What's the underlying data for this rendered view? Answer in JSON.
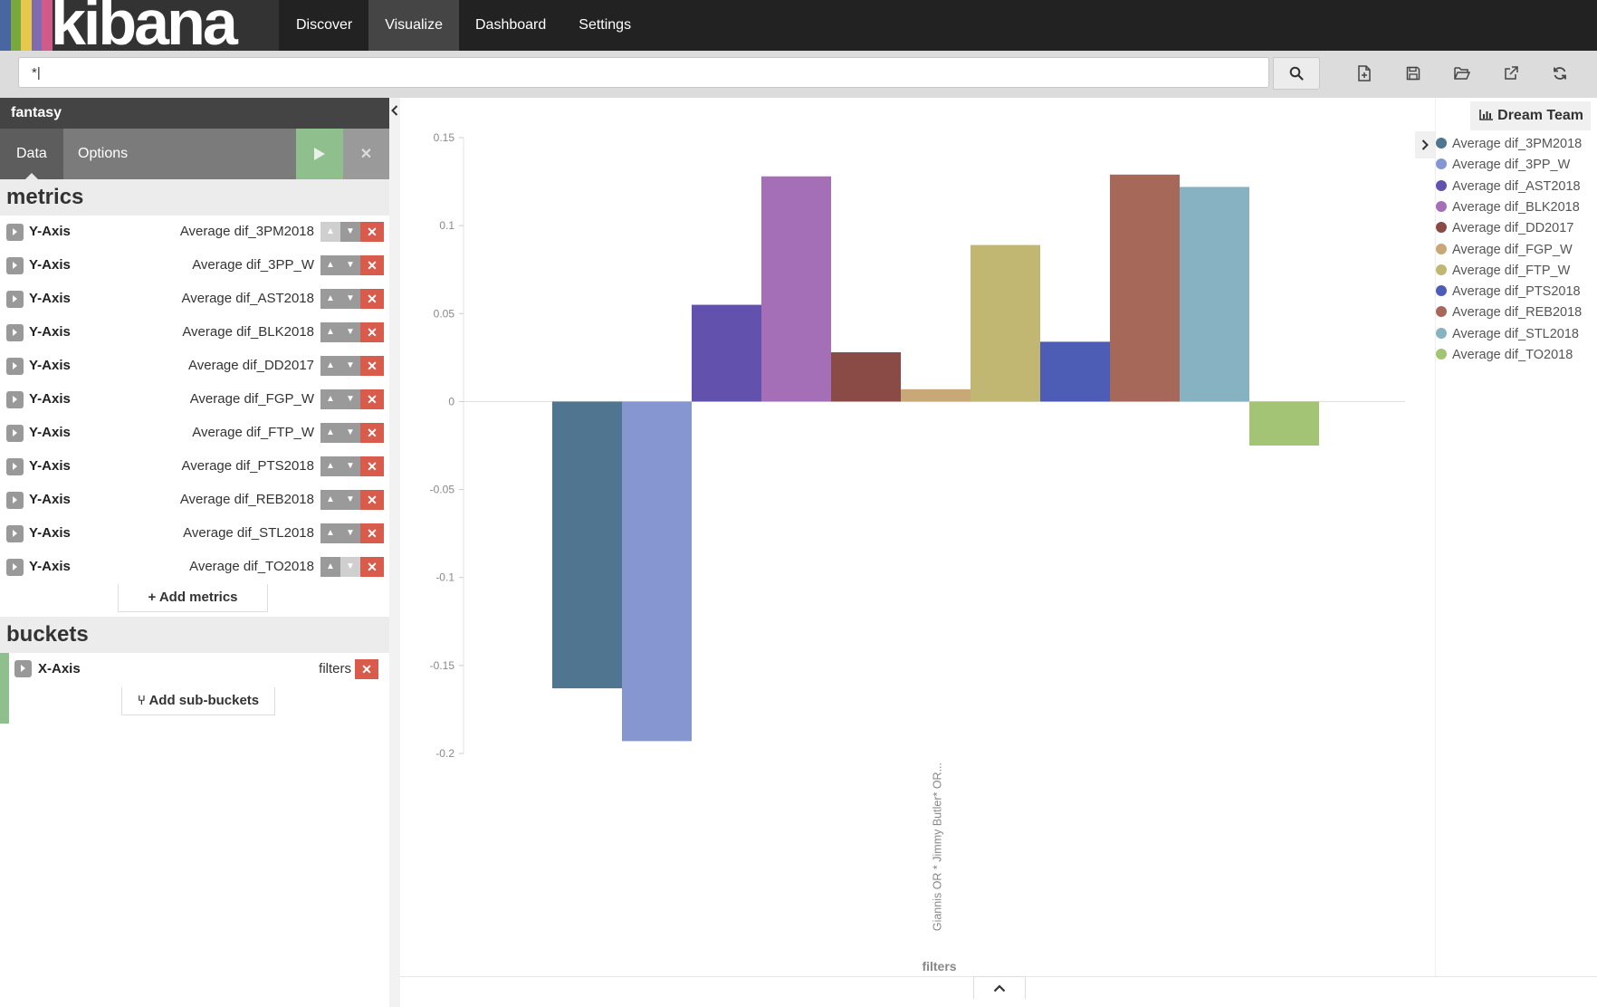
{
  "app": {
    "logo_text": "kibana",
    "logo_colors": [
      "#4a66a0",
      "#78a93f",
      "#e6c84a",
      "#7e6bb0",
      "#d05b8b"
    ]
  },
  "nav": {
    "items": [
      {
        "label": "Discover"
      },
      {
        "label": "Visualize",
        "active": true
      },
      {
        "label": "Dashboard"
      },
      {
        "label": "Settings"
      }
    ]
  },
  "search": {
    "value": "*|",
    "icon": "search-icon"
  },
  "toolbar": {
    "icons": [
      "new-visualization-icon",
      "save-icon",
      "open-icon",
      "share-icon",
      "refresh-icon"
    ]
  },
  "sidebar": {
    "index_pattern": "fantasy",
    "tabs": [
      {
        "label": "Data"
      },
      {
        "label": "Options"
      }
    ],
    "metrics_title": "metrics",
    "metrics": [
      {
        "label": "Y-Axis",
        "desc": "Average dif_3PM2018"
      },
      {
        "label": "Y-Axis",
        "desc": "Average dif_3PP_W"
      },
      {
        "label": "Y-Axis",
        "desc": "Average dif_AST2018"
      },
      {
        "label": "Y-Axis",
        "desc": "Average dif_BLK2018"
      },
      {
        "label": "Y-Axis",
        "desc": "Average dif_DD2017"
      },
      {
        "label": "Y-Axis",
        "desc": "Average dif_FGP_W"
      },
      {
        "label": "Y-Axis",
        "desc": "Average dif_FTP_W"
      },
      {
        "label": "Y-Axis",
        "desc": "Average dif_PTS2018"
      },
      {
        "label": "Y-Axis",
        "desc": "Average dif_REB2018"
      },
      {
        "label": "Y-Axis",
        "desc": "Average dif_STL2018"
      },
      {
        "label": "Y-Axis",
        "desc": "Average dif_TO2018"
      }
    ],
    "add_metrics": "Add metrics",
    "buckets_title": "buckets",
    "bucket": {
      "label": "X-Axis",
      "desc": "filters"
    },
    "add_sub_buckets": "Add sub-buckets"
  },
  "legend": {
    "title": "Dream Team"
  },
  "chart_data": {
    "type": "bar",
    "categories": [
      "Giannis OR * Jimmy Butler* OR..."
    ],
    "xlabel": "filters",
    "ylabel": "",
    "ylim": [
      -0.2,
      0.15
    ],
    "yticks": [
      0.15,
      0.1,
      0.05,
      0,
      -0.05,
      -0.1,
      -0.15,
      -0.2
    ],
    "ytick_labels": [
      "0.15",
      "0.1",
      "0.05",
      "0",
      "-0.05",
      "-0.1",
      "-0.15",
      "-0.2"
    ],
    "legend_position": "right",
    "series": [
      {
        "name": "Average dif_3PM2018",
        "values": [
          -0.163
        ],
        "color": "#4f7590"
      },
      {
        "name": "Average dif_3PP_W",
        "values": [
          -0.193
        ],
        "color": "#8596d0"
      },
      {
        "name": "Average dif_AST2018",
        "values": [
          0.055
        ],
        "color": "#6252ae"
      },
      {
        "name": "Average dif_BLK2018",
        "values": [
          0.128
        ],
        "color": "#a46fb6"
      },
      {
        "name": "Average dif_DD2017",
        "values": [
          0.028
        ],
        "color": "#8a4a45"
      },
      {
        "name": "Average dif_FGP_W",
        "values": [
          0.007
        ],
        "color": "#c9a877"
      },
      {
        "name": "Average dif_FTP_W",
        "values": [
          0.089
        ],
        "color": "#c2b772"
      },
      {
        "name": "Average dif_PTS2018",
        "values": [
          0.034
        ],
        "color": "#4d5db5"
      },
      {
        "name": "Average dif_REB2018",
        "values": [
          0.129
        ],
        "color": "#a66858"
      },
      {
        "name": "Average dif_STL2018",
        "values": [
          0.122
        ],
        "color": "#87b2c1"
      },
      {
        "name": "Average dif_TO2018",
        "values": [
          -0.025
        ],
        "color": "#a2c474"
      }
    ]
  }
}
